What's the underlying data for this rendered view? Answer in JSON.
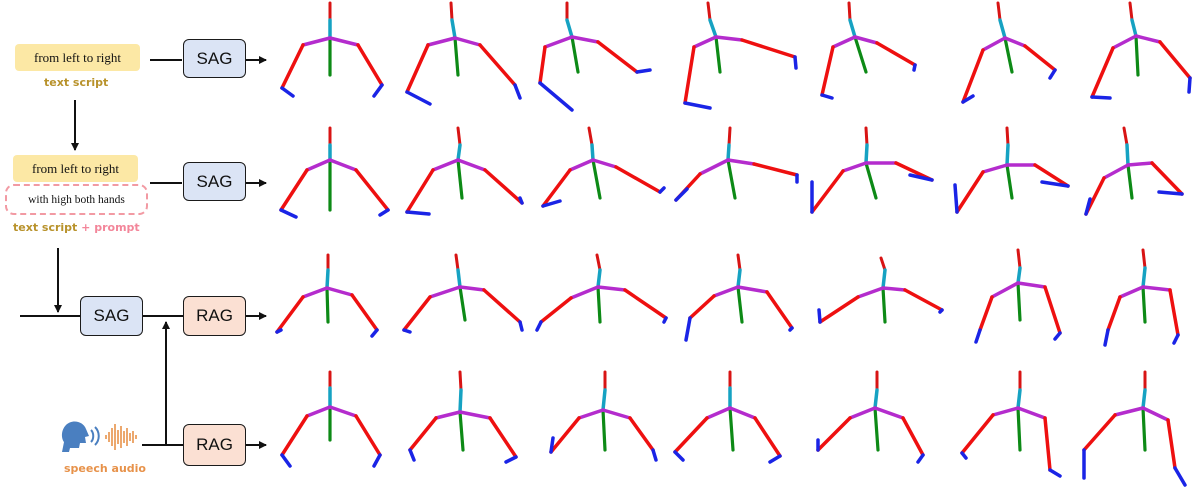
{
  "row1": {
    "script_text": "from left to right",
    "label": "text script",
    "module": "SAG"
  },
  "row2": {
    "script_text": "from left to right",
    "prompt_text": "with high both hands",
    "label_script": "text script",
    "label_plus": "+",
    "label_prompt": "prompt",
    "module": "SAG"
  },
  "row3": {
    "sag_module": "SAG",
    "rag_module": "RAG"
  },
  "row4": {
    "module": "RAG",
    "label": "speech audio"
  },
  "colors": {
    "spine": "#16a2c2",
    "shoulder": "#b42ccd",
    "torso": "#0d8a16",
    "arm": "#ee1010",
    "hand": "#1a24e6",
    "head": "#d81414",
    "sag_fill": "#dbe4f5",
    "rag_fill": "#fbe0d3",
    "script_fill": "#fce8a5",
    "prompt_border": "#f29aa3"
  },
  "icons": {
    "speech": "speaking-head-icon",
    "waveform": "sound-waveform-icon"
  }
}
